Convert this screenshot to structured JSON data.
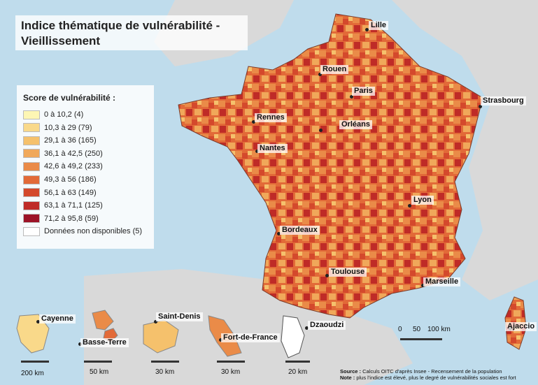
{
  "title_line1": "Indice thématique de vulnérabilité -",
  "title_line2": "Vieillissement",
  "legend": {
    "title": "Score de vulnérabilité :",
    "classes": [
      {
        "label": "0 à 10,2 (4)",
        "color": "#fdf6b4"
      },
      {
        "label": "10,3 à 29 (79)",
        "color": "#f9d98a"
      },
      {
        "label": "29,1 à 36 (165)",
        "color": "#f5c16c"
      },
      {
        "label": "36,1 à 42,5 (250)",
        "color": "#f0a85a"
      },
      {
        "label": "42,6 à 49,2 (233)",
        "color": "#ea8b48"
      },
      {
        "label": "49,3 à 56 (186)",
        "color": "#e26a38"
      },
      {
        "label": "56,1 à 63 (149)",
        "color": "#d4492c"
      },
      {
        "label": "63,1 à 71,1 (125)",
        "color": "#bf2b27"
      },
      {
        "label": "71,2 à 95,8 (59)",
        "color": "#9c1327"
      },
      {
        "label": "Données non disponibles (5)",
        "color": "#ffffff"
      }
    ]
  },
  "cities": {
    "lille": "Lille",
    "rouen": "Rouen",
    "paris": "Paris",
    "strasbourg": "Strasbourg",
    "rennes": "Rennes",
    "orleans": "Orléans",
    "nantes": "Nantes",
    "lyon": "Lyon",
    "bordeaux": "Bordeaux",
    "toulouse": "Toulouse",
    "marseille": "Marseille",
    "ajaccio": "Ajaccio"
  },
  "overseas": {
    "cayenne": "Cayenne",
    "basse_terre": "Basse-Terre",
    "saint_denis": "Saint-Denis",
    "fort_de_france": "Fort-de-France",
    "dzaoudzi": "Dzaoudzi"
  },
  "scales": {
    "main_0": "0",
    "main_50": "50",
    "main_100": "100 km",
    "guyane": "200 km",
    "guadeloupe": "50 km",
    "reunion": "30 km",
    "martinique": "30 km",
    "mayotte": "20 km"
  },
  "source": {
    "source_label": "Source :",
    "source_text": "Calculs OITC d'après Insee - Recensement de la population",
    "note_label": "Note :",
    "note_text": "plus l'indice est élevé, plus le degré de vulnérabilités sociales est fort"
  },
  "colors": {
    "sea": "#bfdcec",
    "land_outside": "#d9d9d9"
  }
}
